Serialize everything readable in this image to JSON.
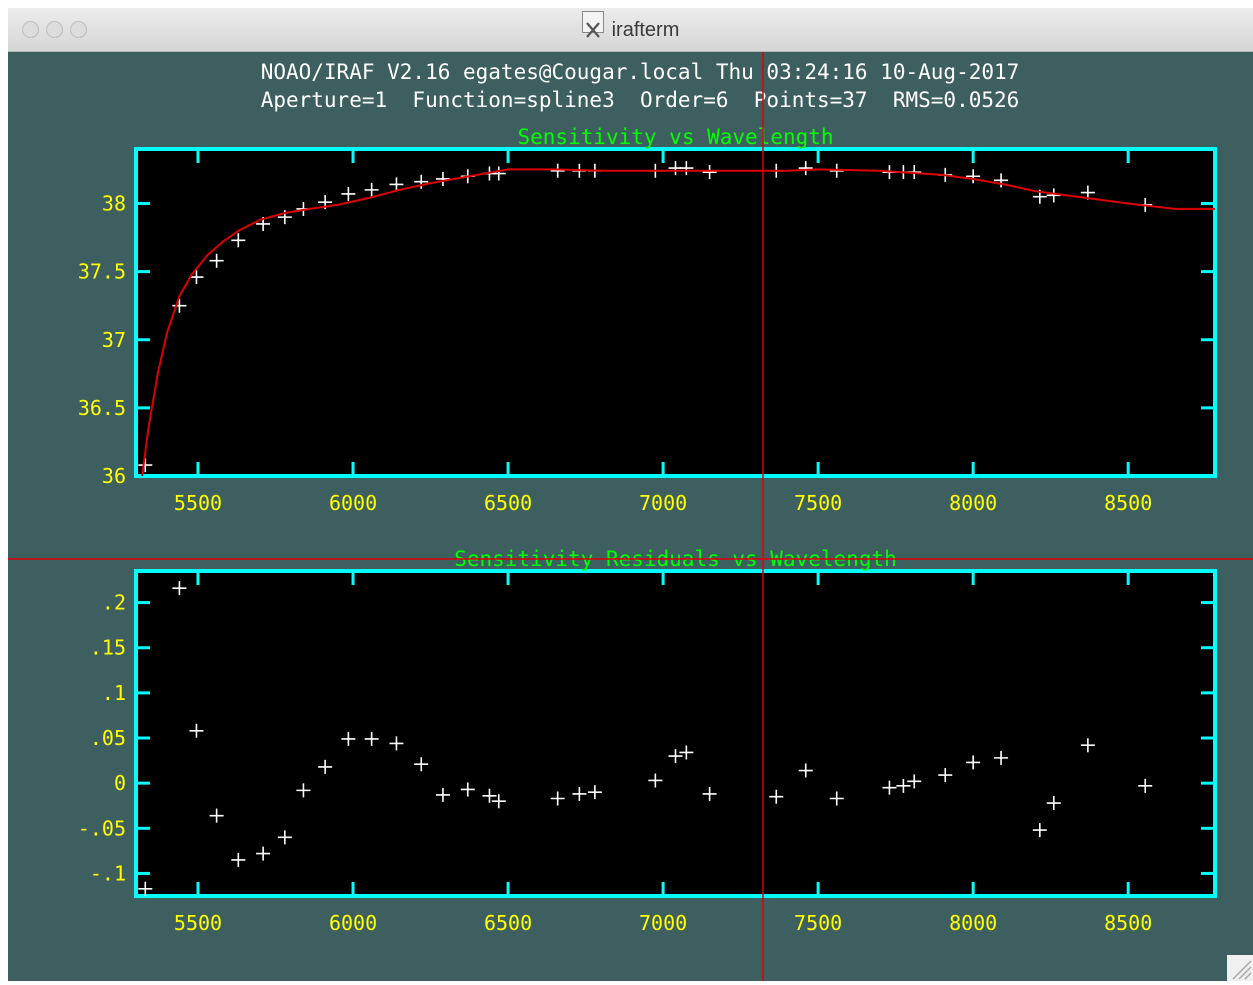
{
  "window": {
    "title": "irafterm",
    "icon": "x11-icon"
  },
  "header": {
    "line1": "NOAO/IRAF V2.16 egates@Cougar.local Thu 03:24:16 10-Aug-2017",
    "line2": "Aperture=1  Function=spline3  Order=6  Points=37  RMS=0.0526"
  },
  "colors": {
    "background": "#3d5f5f",
    "plot_bg": "#000000",
    "frame": "#00ffff",
    "ticklabel": "#ffff00",
    "title": "#00ff00",
    "points": "#ffffff",
    "fit": "#dd0000",
    "cursor": "#dd0000"
  },
  "chart_data": [
    {
      "type": "scatter",
      "title": "Sensitivity vs Wavelength",
      "xlabel": "",
      "ylabel": "",
      "xlim": [
        5300,
        8780
      ],
      "ylim": [
        36,
        38.4
      ],
      "xticks": [
        5500,
        6000,
        6500,
        7000,
        7500,
        8000,
        8500
      ],
      "xticklabels": [
        "5500",
        "6000",
        "6500",
        "7000",
        "7500",
        "8000",
        "8500"
      ],
      "yticks": [
        36,
        36.5,
        37,
        37.5,
        38
      ],
      "yticklabels": [
        "36",
        "36.5",
        "37",
        "37.5",
        "38"
      ],
      "series": [
        {
          "type": "scatter",
          "x": [
            5330,
            5440,
            5495,
            5560,
            5630,
            5710,
            5780,
            5840,
            5910,
            5985,
            6060,
            6140,
            6220,
            6290,
            6370,
            6440,
            6470,
            6660,
            6730,
            6780,
            6975,
            7040,
            7075,
            7150,
            7365,
            7460,
            7560,
            7730,
            7775,
            7810,
            7910,
            8000,
            8090,
            8215,
            8260,
            8370,
            8555
          ],
          "y": [
            36.08,
            37.25,
            37.46,
            37.58,
            37.73,
            37.85,
            37.9,
            37.96,
            38.01,
            38.07,
            38.1,
            38.14,
            38.16,
            38.18,
            38.2,
            38.22,
            38.22,
            38.24,
            38.24,
            38.24,
            38.24,
            38.26,
            38.26,
            38.23,
            38.24,
            38.26,
            38.24,
            38.23,
            38.23,
            38.23,
            38.21,
            38.2,
            38.17,
            38.05,
            38.06,
            38.08,
            37.99
          ]
        },
        {
          "type": "line",
          "x": [
            5320,
            5340,
            5370,
            5400,
            5440,
            5480,
            5530,
            5580,
            5630,
            5700,
            5780,
            5860,
            5950,
            6050,
            6150,
            6250,
            6350,
            6450,
            6500,
            6650,
            6800,
            7000,
            7200,
            7400,
            7500,
            7700,
            7900,
            8000,
            8100,
            8200,
            8300,
            8400,
            8500,
            8650,
            8780
          ],
          "y": [
            36.0,
            36.35,
            36.75,
            37.05,
            37.32,
            37.48,
            37.62,
            37.72,
            37.8,
            37.88,
            37.93,
            37.96,
            37.99,
            38.04,
            38.1,
            38.15,
            38.19,
            38.23,
            38.25,
            38.25,
            38.24,
            38.24,
            38.24,
            38.24,
            38.25,
            38.24,
            38.21,
            38.18,
            38.14,
            38.09,
            38.06,
            38.03,
            38.0,
            37.96,
            37.96
          ]
        }
      ]
    },
    {
      "type": "scatter",
      "title": "Sensitivity Residuals vs Wavelength",
      "xlabel": "",
      "ylabel": "",
      "xlim": [
        5300,
        8780
      ],
      "ylim": [
        -0.125,
        0.235
      ],
      "xticks": [
        5500,
        6000,
        6500,
        7000,
        7500,
        8000,
        8500
      ],
      "xticklabels": [
        "5500",
        "6000",
        "6500",
        "7000",
        "7500",
        "8000",
        "8500"
      ],
      "yticks": [
        -0.1,
        -0.05,
        0,
        0.05,
        0.1,
        0.15,
        0.2
      ],
      "yticklabels": [
        "-.1",
        "-.05",
        "0",
        ".05",
        ".1",
        ".15",
        ".2"
      ],
      "series": [
        {
          "type": "scatter",
          "x": [
            5330,
            5440,
            5495,
            5560,
            5630,
            5710,
            5780,
            5840,
            5910,
            5985,
            6060,
            6140,
            6220,
            6290,
            6370,
            6440,
            6470,
            6660,
            6730,
            6780,
            6975,
            7040,
            7075,
            7150,
            7365,
            7460,
            7560,
            7730,
            7775,
            7810,
            7910,
            8000,
            8090,
            8215,
            8260,
            8370,
            8555
          ],
          "y": [
            -0.117,
            0.216,
            0.058,
            -0.036,
            -0.085,
            -0.078,
            -0.06,
            -0.008,
            0.018,
            0.049,
            0.049,
            0.044,
            0.021,
            -0.013,
            -0.007,
            -0.014,
            -0.02,
            -0.017,
            -0.012,
            -0.01,
            0.003,
            0.03,
            0.034,
            -0.012,
            -0.015,
            0.014,
            -0.017,
            -0.005,
            -0.003,
            0.002,
            0.009,
            0.023,
            0.028,
            -0.052,
            -0.022,
            0.042,
            -0.003
          ]
        }
      ]
    }
  ]
}
